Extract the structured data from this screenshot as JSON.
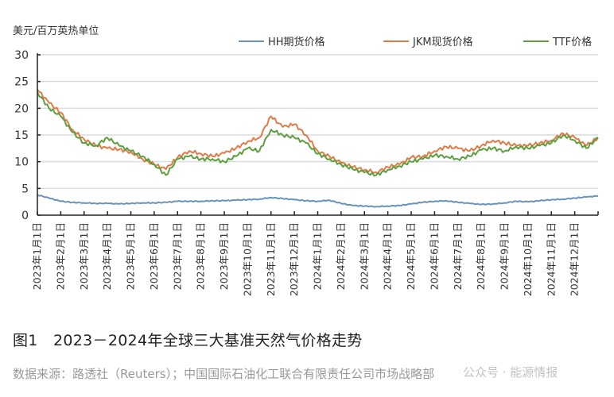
{
  "chart": {
    "unit_label": "美元/百万英热单位",
    "caption": "图1　2023－2024年全球三大基准天然气价格走势",
    "source": "数据来源：路透社（Reuters）；中国国际石油化工联合有限责任公司市场战略部",
    "watermark": "公众号 · 能源情报",
    "legend": [
      {
        "name": "HH期货价格",
        "color": "#6a93b8"
      },
      {
        "name": "JKM现货价格",
        "color": "#e07b47"
      },
      {
        "name": "TTF价格",
        "color": "#5e9e3e"
      }
    ]
  },
  "chart_data": {
    "type": "line",
    "title": "2023－2024年全球三大基准天然气价格走势",
    "xlabel": "",
    "ylabel": "美元/百万英热单位",
    "ylim": [
      0,
      30
    ],
    "yticks": [
      0,
      5,
      10,
      15,
      20,
      25,
      30
    ],
    "grid": true,
    "legend_position": "top-right",
    "categories": [
      "2023年1月1日",
      "2023年2月1日",
      "2023年3月1日",
      "2023年4月1日",
      "2023年5月1日",
      "2023年6月1日",
      "2023年7月1日",
      "2023年8月1日",
      "2023年9月1日",
      "2023年10月1日",
      "2023年11月1日",
      "2023年12月1日",
      "2024年1月1日",
      "2024年2月1日",
      "2024年3月1日",
      "2024年4月1日",
      "2024年5月1日",
      "2024年6月1日",
      "2024年7月1日",
      "2024年8月1日",
      "2024年9月1日",
      "2024年10月1日",
      "2024年11月1日",
      "2024年12月1日"
    ],
    "x_half_month_index": [
      0,
      0.5,
      1,
      1.5,
      2,
      2.5,
      3,
      3.5,
      4,
      4.5,
      5,
      5.5,
      6,
      6.5,
      7,
      7.5,
      8,
      8.5,
      9,
      9.5,
      10,
      10.5,
      11,
      11.5,
      12,
      12.5,
      13,
      13.5,
      14,
      14.5,
      15,
      15.5,
      16,
      16.5,
      17,
      17.5,
      18,
      18.5,
      19,
      19.5,
      20,
      20.5,
      21,
      21.5,
      22,
      22.5,
      23,
      23.5,
      24
    ],
    "series": [
      {
        "name": "HH期货价格",
        "color": "#6a93b8",
        "values": [
          3.8,
          3.2,
          2.6,
          2.4,
          2.3,
          2.2,
          2.2,
          2.1,
          2.2,
          2.3,
          2.3,
          2.4,
          2.6,
          2.6,
          2.6,
          2.7,
          2.7,
          2.8,
          2.9,
          3.0,
          3.3,
          3.1,
          2.9,
          2.7,
          2.6,
          2.8,
          2.2,
          1.8,
          1.7,
          1.6,
          1.7,
          1.8,
          2.1,
          2.4,
          2.6,
          2.7,
          2.4,
          2.2,
          2.0,
          2.1,
          2.3,
          2.6,
          2.5,
          2.7,
          2.9,
          3.0,
          3.2,
          3.4,
          3.6
        ]
      },
      {
        "name": "JKM现货价格",
        "color": "#e07b47",
        "values": [
          23.5,
          21.0,
          19.2,
          16.0,
          14.2,
          13.0,
          12.5,
          12.3,
          11.8,
          10.5,
          9.5,
          8.6,
          10.8,
          12.0,
          11.5,
          11.0,
          11.6,
          12.5,
          13.8,
          14.5,
          18.5,
          16.5,
          17.0,
          15.0,
          12.0,
          11.0,
          9.8,
          9.0,
          8.5,
          8.0,
          9.0,
          9.5,
          10.8,
          11.0,
          12.0,
          12.8,
          12.5,
          12.0,
          13.0,
          14.0,
          13.5,
          13.0,
          13.0,
          13.5,
          14.0,
          15.3,
          14.5,
          13.0,
          14.5
        ]
      },
      {
        "name": "TTF价格",
        "color": "#5e9e3e",
        "values": [
          23.0,
          20.0,
          18.5,
          15.5,
          13.5,
          13.0,
          14.5,
          13.0,
          12.0,
          11.0,
          9.5,
          7.5,
          10.5,
          11.0,
          10.5,
          10.5,
          10.0,
          11.0,
          12.5,
          12.0,
          16.0,
          15.0,
          14.5,
          13.5,
          11.5,
          10.5,
          9.5,
          8.6,
          8.0,
          7.5,
          8.5,
          9.2,
          10.0,
          10.5,
          11.2,
          11.0,
          10.5,
          11.0,
          12.2,
          12.5,
          12.0,
          12.8,
          12.5,
          13.0,
          13.5,
          15.0,
          14.0,
          12.5,
          14.5
        ]
      }
    ]
  }
}
